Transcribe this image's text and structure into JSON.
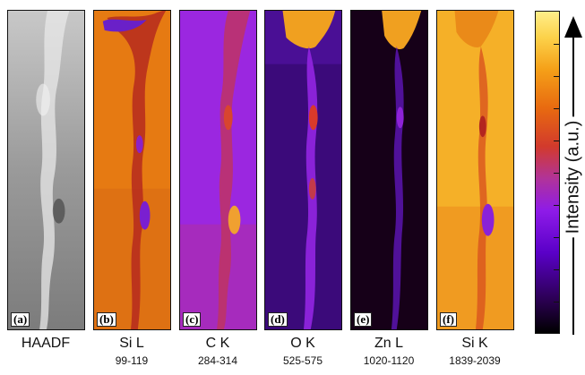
{
  "panels": [
    {
      "tag": "(a)",
      "title": "HAADF",
      "range": ""
    },
    {
      "tag": "(b)",
      "title": "Si L",
      "range": "99-119"
    },
    {
      "tag": "(c)",
      "title": "C K",
      "range": "284-314"
    },
    {
      "tag": "(d)",
      "title": "O K",
      "range": "525-575"
    },
    {
      "tag": "(e)",
      "title": "Zn L",
      "range": "1020-1120"
    },
    {
      "tag": "(f)",
      "title": "Si K",
      "range": "1839-2039"
    }
  ],
  "colorbar": {
    "label": "Intensity (a.u.)"
  },
  "colors": {
    "haadf_bg": "#8a8a8a",
    "sil_bg": "#e67a12",
    "ck_bg": "#9b27e0",
    "ok_bg": "#3b0a7a",
    "znl_bg": "#160018",
    "sik_bg": "#f5b028",
    "vein": "#7a1fd0"
  }
}
